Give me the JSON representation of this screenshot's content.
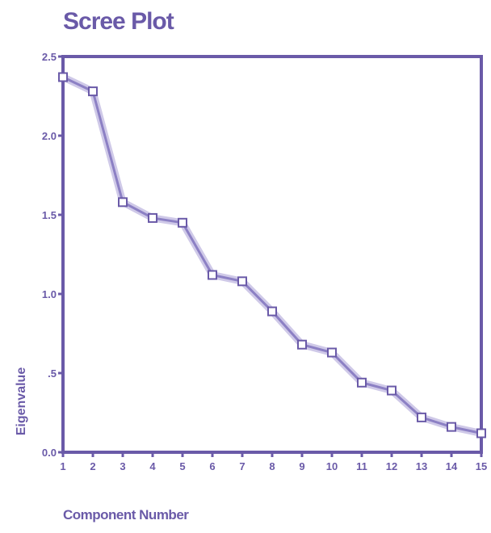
{
  "chart_data": {
    "type": "line",
    "title": "Scree Plot",
    "xlabel": "Component Number",
    "ylabel": "Eigenvalue",
    "x": [
      1,
      2,
      3,
      4,
      5,
      6,
      7,
      8,
      9,
      10,
      11,
      12,
      13,
      14,
      15
    ],
    "series": [
      {
        "values": [
          2.37,
          2.28,
          1.58,
          1.48,
          1.45,
          1.12,
          1.08,
          0.89,
          0.68,
          0.63,
          0.44,
          0.39,
          0.22,
          0.16,
          0.12
        ]
      }
    ],
    "xlim": [
      1,
      15
    ],
    "ylim": [
      0.0,
      2.5
    ],
    "xticks": [
      "1",
      "2",
      "3",
      "4",
      "5",
      "6",
      "7",
      "8",
      "9",
      "10",
      "11",
      "12",
      "13",
      "14",
      "15"
    ],
    "yticks": [
      {
        "value": 0.0,
        "label": "0.0"
      },
      {
        "value": 0.5,
        "label": ".5"
      },
      {
        "value": 1.0,
        "label": "1.0"
      },
      {
        "value": 1.5,
        "label": "1.5"
      },
      {
        "value": 2.0,
        "label": "2.0"
      },
      {
        "value": 2.5,
        "label": "2.5"
      }
    ],
    "grid": false,
    "marker": "square",
    "colors": {
      "line": "#8c80c4",
      "line_shadow": "#cfc9e8",
      "axis": "#6a5aa8",
      "marker_stroke": "#6a5aa8"
    }
  }
}
